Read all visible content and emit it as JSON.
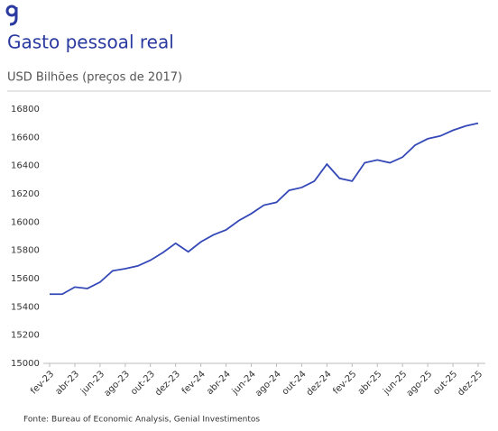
{
  "chart_data": {
    "type": "line",
    "title": "Gasto pessoal real",
    "subtitle": "USD Bilhões (preços de 2017)",
    "source": "Fonte: Bureau of Economic Analysis, Genial Investimentos",
    "categories": [
      "fev-23",
      null,
      "abr-23",
      null,
      "jun-23",
      null,
      "ago-23",
      null,
      "out-23",
      null,
      "dez-23",
      null,
      "fev-24",
      null,
      "abr-24",
      null,
      "jun-24",
      null,
      "ago-24",
      null,
      "out-24",
      null,
      "dez-24",
      null,
      "fev-25",
      null,
      "abr-25",
      null,
      "jun-25",
      null,
      "ago-25",
      null,
      "out-25",
      null,
      "dez-25"
    ],
    "series": [
      {
        "name": "Gasto pessoal real",
        "color": "#3448b8",
        "values": [
          15490,
          15490,
          15540,
          15530,
          15575,
          15655,
          15670,
          15690,
          15730,
          15785,
          15850,
          15790,
          15860,
          15910,
          15945,
          16010,
          16060,
          16120,
          16140,
          16225,
          16245,
          16290,
          16410,
          16310,
          16290,
          16420,
          16440,
          16420,
          16460,
          16545,
          16590,
          16610,
          16650,
          16680,
          16700
        ]
      }
    ],
    "ylim": [
      15000,
      16800
    ],
    "yticks": [
      15000,
      15200,
      15400,
      15600,
      15800,
      16000,
      16200,
      16400,
      16600,
      16800
    ],
    "grid": false
  }
}
